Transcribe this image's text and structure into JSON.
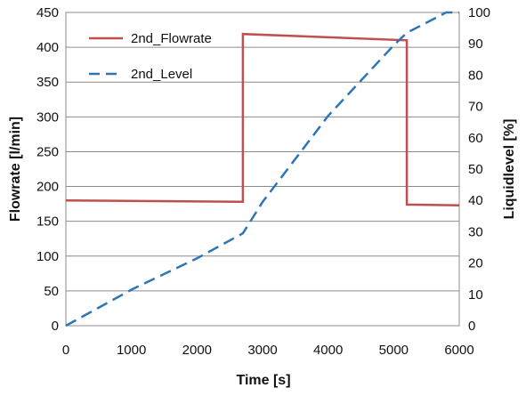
{
  "chart_data": {
    "type": "line",
    "xlabel": "Time [s]",
    "ylabel": "Flowrate [l/min]",
    "y2label": "Liquidlevel [%]",
    "xlim": [
      0,
      6000
    ],
    "ylim": [
      0,
      450
    ],
    "y2lim": [
      0,
      100
    ],
    "x_ticks": [
      0,
      1000,
      2000,
      3000,
      4000,
      5000,
      6000
    ],
    "y_ticks": [
      0,
      50,
      100,
      150,
      200,
      250,
      300,
      350,
      400,
      450
    ],
    "y2_ticks": [
      0,
      10,
      20,
      30,
      40,
      50,
      60,
      70,
      80,
      90,
      100
    ],
    "grid": "horizontal",
    "legend_position": "top-left",
    "series": [
      {
        "name": "2nd_Flowrate",
        "axis": "left",
        "color": "#c0504d",
        "style": "solid",
        "x": [
          0,
          2700,
          2700,
          5200,
          5200,
          6000
        ],
        "y": [
          180,
          178,
          419,
          410,
          174,
          173
        ]
      },
      {
        "name": "2nd_Level",
        "axis": "right",
        "color": "#2e75b6",
        "style": "dashed",
        "x": [
          0,
          1000,
          2000,
          2700,
          3000,
          4000,
          5000,
          5200,
          5800,
          6000
        ],
        "y": [
          0,
          11.5,
          21.5,
          29.5,
          39.5,
          67,
          89.5,
          93.5,
          100,
          100
        ]
      }
    ]
  }
}
